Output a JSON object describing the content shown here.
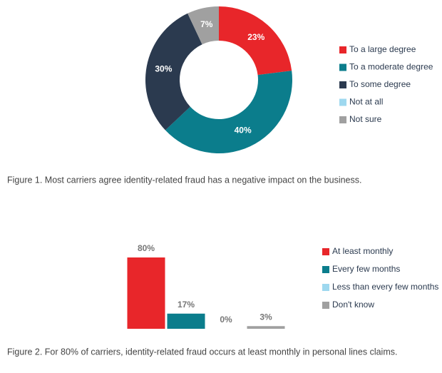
{
  "chart_data": [
    {
      "type": "pie",
      "categories": [
        "To a large degree",
        "To a moderate degree",
        "To some degree",
        "Not at all",
        "Not sure"
      ],
      "values": [
        23,
        40,
        30,
        0,
        7
      ],
      "value_labels": [
        "23%",
        "40%",
        "30%",
        null,
        "7%"
      ],
      "colors": [
        "#e8262a",
        "#0b7d8c",
        "#2b3a4f",
        "#9ed8ef",
        "#a0a0a0"
      ],
      "caption": "Figure 1. Most carriers agree identity-related fraud has a negative impact on the business."
    },
    {
      "type": "bar",
      "categories": [
        "At least monthly",
        "Every few months",
        "Less than every few months",
        "Don't know"
      ],
      "values": [
        80,
        17,
        0,
        3
      ],
      "value_labels": [
        "80%",
        "17%",
        "0%",
        "3%"
      ],
      "colors": [
        "#e8262a",
        "#0b7d8c",
        "#9ed8ef",
        "#a0a0a0"
      ],
      "caption": "Figure 2. For 80% of carriers, identity-related fraud occurs at least monthly in personal lines claims."
    }
  ]
}
